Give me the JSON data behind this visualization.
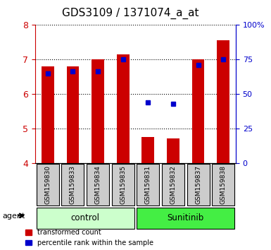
{
  "title": "GDS3109 / 1371074_a_at",
  "samples": [
    "GSM159830",
    "GSM159833",
    "GSM159834",
    "GSM159835",
    "GSM159831",
    "GSM159832",
    "GSM159837",
    "GSM159838"
  ],
  "bar_values": [
    6.8,
    6.8,
    7.0,
    7.15,
    4.75,
    4.72,
    7.0,
    7.55
  ],
  "bar_bottom": [
    4.0,
    4.0,
    4.0,
    4.0,
    4.0,
    4.0,
    4.0,
    4.0
  ],
  "percentile_values": [
    6.6,
    6.65,
    6.65,
    7.0,
    5.75,
    5.72,
    6.85,
    7.0
  ],
  "groups": [
    {
      "label": "control",
      "color": "#ccffcc",
      "samples": [
        0,
        1,
        2,
        3
      ]
    },
    {
      "label": "Sunitinib",
      "color": "#44ee44",
      "samples": [
        4,
        5,
        6,
        7
      ]
    }
  ],
  "ylim": [
    4,
    8
  ],
  "yticks_left": [
    4,
    5,
    6,
    7,
    8
  ],
  "yticks_right": [
    0,
    25,
    50,
    75,
    100
  ],
  "ylabel_left_color": "#cc0000",
  "ylabel_right_color": "#0000cc",
  "bar_color": "#cc0000",
  "percentile_color": "#0000cc",
  "bg_color": "#ffffff",
  "grid_color": "#000000",
  "sample_bg": "#cccccc",
  "agent_label": "agent",
  "legend_items": [
    "transformed count",
    "percentile rank within the sample"
  ]
}
